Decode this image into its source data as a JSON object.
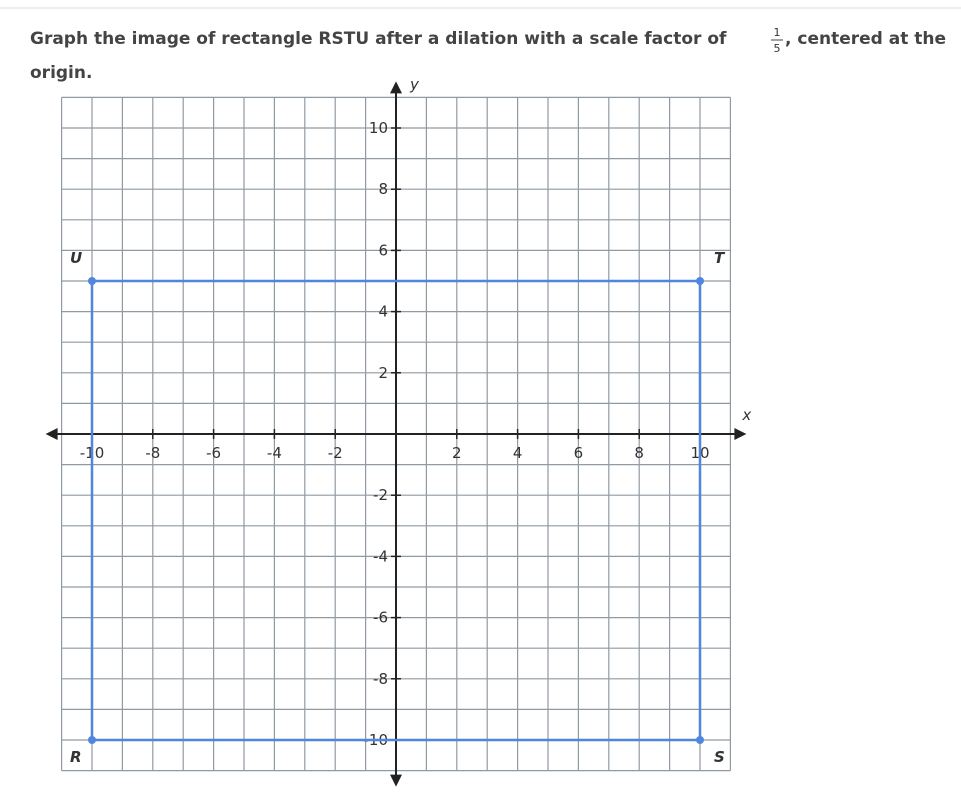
{
  "question": {
    "before": "Graph the image of rectangle RSTU after a dilation with a scale factor of",
    "numerator": "1",
    "denominator": "5",
    "after": ", centered at the",
    "line2": "origin."
  },
  "chart_data": {
    "type": "scatter",
    "xlabel": "x",
    "ylabel": "y",
    "xlim": [
      -11,
      11
    ],
    "ylim": [
      -11,
      11
    ],
    "xticks": [
      -10,
      -8,
      -6,
      -4,
      -2,
      2,
      4,
      6,
      8,
      10
    ],
    "yticks": [
      -10,
      -8,
      -6,
      -4,
      -2,
      2,
      4,
      6,
      8,
      10
    ],
    "grid": true,
    "series": [
      {
        "name": "RSTU",
        "color": "#4f86e0",
        "labels": [
          "R",
          "S",
          "T",
          "U"
        ],
        "x": [
          -10,
          10,
          10,
          -10
        ],
        "values": [
          -10,
          -10,
          5,
          5
        ]
      }
    ]
  }
}
